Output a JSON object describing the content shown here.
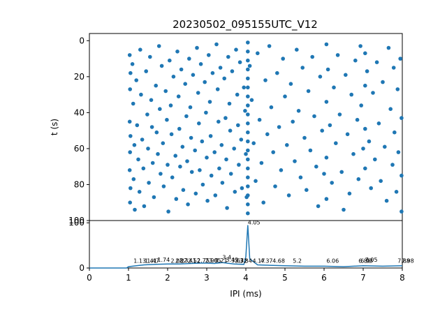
{
  "chart_data": [
    {
      "type": "scatter",
      "title": "20230502_095155UTC_V12",
      "xlabel": "",
      "ylabel": "t (s)",
      "xlim": [
        0,
        8
      ],
      "ylim": [
        100,
        -4
      ],
      "y_inverted": true,
      "yticks": [
        0,
        20,
        40,
        60,
        80,
        100
      ],
      "xticks": [
        0,
        1,
        2,
        3,
        4,
        5,
        6,
        7,
        8
      ],
      "color": "#1f77b4",
      "points": [
        [
          1.03,
          8
        ],
        [
          1.05,
          18
        ],
        [
          1.04,
          27
        ],
        [
          1.03,
          45
        ],
        [
          1.05,
          53
        ],
        [
          1.04,
          62
        ],
        [
          1.03,
          72
        ],
        [
          1.05,
          82
        ],
        [
          1.04,
          90
        ],
        [
          1.1,
          13
        ],
        [
          1.12,
          35
        ],
        [
          1.15,
          58
        ],
        [
          1.13,
          77
        ],
        [
          1.16,
          94
        ],
        [
          1.2,
          22
        ],
        [
          1.22,
          47
        ],
        [
          1.25,
          66
        ],
        [
          1.28,
          84
        ],
        [
          1.3,
          5
        ],
        [
          1.32,
          30
        ],
        [
          1.35,
          55
        ],
        [
          1.38,
          71
        ],
        [
          1.4,
          92
        ],
        [
          1.45,
          17
        ],
        [
          1.48,
          41
        ],
        [
          1.5,
          60
        ],
        [
          1.52,
          79
        ],
        [
          1.55,
          9
        ],
        [
          1.58,
          33
        ],
        [
          1.6,
          48
        ],
        [
          1.62,
          68
        ],
        [
          1.65,
          87
        ],
        [
          1.7,
          25
        ],
        [
          1.72,
          51
        ],
        [
          1.75,
          63
        ],
        [
          1.78,
          3
        ],
        [
          1.8,
          38
        ],
        [
          1.82,
          74
        ],
        [
          1.85,
          14
        ],
        [
          1.88,
          57
        ],
        [
          1.9,
          81
        ],
        [
          1.95,
          28
        ],
        [
          1.98,
          44
        ],
        [
          2.0,
          69
        ],
        [
          2.02,
          95
        ],
        [
          2.05,
          11
        ],
        [
          2.08,
          36
        ],
        [
          2.1,
          52
        ],
        [
          2.12,
          76
        ],
        [
          2.15,
          20
        ],
        [
          2.2,
          64
        ],
        [
          2.22,
          88
        ],
        [
          2.25,
          6
        ],
        [
          2.28,
          31
        ],
        [
          2.3,
          49
        ],
        [
          2.32,
          70
        ],
        [
          2.35,
          16
        ],
        [
          2.38,
          59
        ],
        [
          2.4,
          83
        ],
        [
          2.45,
          24
        ],
        [
          2.48,
          42
        ],
        [
          2.5,
          67
        ],
        [
          2.52,
          91
        ],
        [
          2.55,
          10
        ],
        [
          2.58,
          37
        ],
        [
          2.6,
          54
        ],
        [
          2.62,
          73
        ],
        [
          2.65,
          19
        ],
        [
          2.7,
          61
        ],
        [
          2.72,
          85
        ],
        [
          2.75,
          4
        ],
        [
          2.78,
          29
        ],
        [
          2.8,
          46
        ],
        [
          2.82,
          72
        ],
        [
          2.85,
          13
        ],
        [
          2.88,
          56
        ],
        [
          2.9,
          80
        ],
        [
          2.95,
          23
        ],
        [
          2.98,
          40
        ],
        [
          3.0,
          65
        ],
        [
          3.02,
          89
        ],
        [
          3.05,
          8
        ],
        [
          3.08,
          34
        ],
        [
          3.1,
          53
        ],
        [
          3.12,
          75
        ],
        [
          3.15,
          18
        ],
        [
          3.2,
          62
        ],
        [
          3.22,
          86
        ],
        [
          3.25,
          2
        ],
        [
          3.28,
          27
        ],
        [
          3.3,
          45
        ],
        [
          3.32,
          71
        ],
        [
          3.35,
          15
        ],
        [
          3.38,
          58
        ],
        [
          3.4,
          79
        ],
        [
          3.45,
          21
        ],
        [
          3.48,
          43
        ],
        [
          3.5,
          66
        ],
        [
          3.52,
          93
        ],
        [
          3.55,
          9
        ],
        [
          3.58,
          35
        ],
        [
          3.6,
          50
        ],
        [
          3.62,
          74
        ],
        [
          3.65,
          17
        ],
        [
          3.7,
          60
        ],
        [
          3.72,
          84
        ],
        [
          3.75,
          5
        ],
        [
          3.78,
          30
        ],
        [
          3.8,
          47
        ],
        [
          3.82,
          69
        ],
        [
          3.85,
          12
        ],
        [
          3.88,
          55
        ],
        [
          3.9,
          82
        ],
        [
          3.95,
          26
        ],
        [
          3.98,
          39
        ],
        [
          4.0,
          63
        ],
        [
          4.02,
          87
        ],
        [
          4.05,
          1
        ],
        [
          4.05,
          6
        ],
        [
          4.05,
          11
        ],
        [
          4.05,
          16
        ],
        [
          4.05,
          21
        ],
        [
          4.05,
          26
        ],
        [
          4.05,
          31
        ],
        [
          4.05,
          36
        ],
        [
          4.05,
          41
        ],
        [
          4.05,
          46
        ],
        [
          4.05,
          51
        ],
        [
          4.05,
          56
        ],
        [
          4.05,
          61
        ],
        [
          4.05,
          66
        ],
        [
          4.05,
          71
        ],
        [
          4.05,
          76
        ],
        [
          4.05,
          81
        ],
        [
          4.05,
          86
        ],
        [
          4.05,
          91
        ],
        [
          4.05,
          96
        ],
        [
          4.1,
          14
        ],
        [
          4.15,
          33
        ],
        [
          4.2,
          57
        ],
        [
          4.25,
          78
        ],
        [
          4.3,
          7
        ],
        [
          4.35,
          44
        ],
        [
          4.4,
          68
        ],
        [
          4.45,
          90
        ],
        [
          4.5,
          22
        ],
        [
          4.55,
          52
        ],
        [
          4.6,
          3
        ],
        [
          4.65,
          37
        ],
        [
          4.7,
          62
        ],
        [
          4.75,
          81
        ],
        [
          4.8,
          18
        ],
        [
          4.85,
          48
        ],
        [
          4.9,
          72
        ],
        [
          4.95,
          10
        ],
        [
          5.0,
          31
        ],
        [
          5.05,
          58
        ],
        [
          5.1,
          86
        ],
        [
          5.15,
          24
        ],
        [
          5.2,
          45
        ],
        [
          5.25,
          67
        ],
        [
          5.3,
          5
        ],
        [
          5.35,
          39
        ],
        [
          5.4,
          76
        ],
        [
          5.45,
          15
        ],
        [
          5.5,
          54
        ],
        [
          5.55,
          83
        ],
        [
          5.6,
          28
        ],
        [
          5.65,
          61
        ],
        [
          5.7,
          9
        ],
        [
          5.75,
          42
        ],
        [
          5.8,
          70
        ],
        [
          5.85,
          92
        ],
        [
          5.9,
          20
        ],
        [
          5.95,
          50
        ],
        [
          6.0,
          74
        ],
        [
          6.06,
          2
        ],
        [
          6.06,
          34
        ],
        [
          6.06,
          65
        ],
        [
          6.06,
          88
        ],
        [
          6.1,
          16
        ],
        [
          6.15,
          47
        ],
        [
          6.2,
          79
        ],
        [
          6.25,
          26
        ],
        [
          6.3,
          57
        ],
        [
          6.35,
          8
        ],
        [
          6.4,
          41
        ],
        [
          6.45,
          73
        ],
        [
          6.5,
          94
        ],
        [
          6.55,
          19
        ],
        [
          6.6,
          52
        ],
        [
          6.65,
          85
        ],
        [
          6.7,
          30
        ],
        [
          6.75,
          63
        ],
        [
          6.8,
          11
        ],
        [
          6.85,
          44
        ],
        [
          6.88,
          77
        ],
        [
          6.93,
          3
        ],
        [
          6.95,
          36
        ],
        [
          7.0,
          60
        ],
        [
          7.05,
          7
        ],
        [
          7.05,
          25
        ],
        [
          7.05,
          49
        ],
        [
          7.05,
          71
        ],
        [
          7.1,
          17
        ],
        [
          7.15,
          56
        ],
        [
          7.2,
          82
        ],
        [
          7.25,
          29
        ],
        [
          7.3,
          66
        ],
        [
          7.35,
          12
        ],
        [
          7.4,
          46
        ],
        [
          7.45,
          78
        ],
        [
          7.5,
          23
        ],
        [
          7.55,
          59
        ],
        [
          7.6,
          89
        ],
        [
          7.65,
          4
        ],
        [
          7.7,
          38
        ],
        [
          7.75,
          69
        ],
        [
          7.78,
          15
        ],
        [
          7.8,
          51
        ],
        [
          7.85,
          84
        ],
        [
          7.88,
          27
        ],
        [
          7.9,
          62
        ],
        [
          7.95,
          10
        ],
        [
          7.98,
          43
        ],
        [
          7.98,
          75
        ],
        [
          7.98,
          95
        ]
      ]
    },
    {
      "type": "line",
      "xlabel": "IPI (ms)",
      "ylabel": "",
      "xlim": [
        0,
        8
      ],
      "ylim": [
        0,
        105
      ],
      "yticks": [
        0,
        100
      ],
      "xticks": [
        0,
        1,
        2,
        3,
        4,
        5,
        6,
        7,
        8
      ],
      "xtick_labels": [
        "0",
        "1",
        "2",
        "3",
        "4",
        "5",
        "6",
        "7",
        "8"
      ],
      "color": "#1f77b4",
      "x": [
        0,
        0.95,
        1.0,
        1.2,
        1.4,
        1.7,
        2.0,
        2.3,
        2.6,
        2.9,
        3.2,
        3.4,
        3.7,
        3.95,
        4.0,
        4.05,
        4.1,
        4.3,
        4.6,
        5.0,
        5.5,
        6.0,
        6.5,
        7.0,
        7.5,
        8.0
      ],
      "y": [
        0,
        0,
        3,
        5,
        7,
        8,
        9,
        9,
        10,
        11,
        10,
        12,
        9,
        8,
        25,
        95,
        20,
        7,
        6,
        5,
        4,
        4,
        3,
        5,
        4,
        5
      ],
      "peak_labels": [
        {
          "x": 1.13,
          "y": 10,
          "text": "1.13"
        },
        {
          "x": 1.41,
          "y": 10,
          "text": "1.41"
        },
        {
          "x": 1.47,
          "y": 10,
          "text": "1.47"
        },
        {
          "x": 1.74,
          "y": 12,
          "text": "1.74"
        },
        {
          "x": 2.08,
          "y": 10,
          "text": "2.08"
        },
        {
          "x": 2.2,
          "y": 10,
          "text": "2.2"
        },
        {
          "x": 2.3,
          "y": 11,
          "text": "2.3"
        },
        {
          "x": 2.41,
          "y": 11,
          "text": "2.41"
        },
        {
          "x": 2.52,
          "y": 10,
          "text": "2.52"
        },
        {
          "x": 2.75,
          "y": 11,
          "text": "2.75"
        },
        {
          "x": 2.96,
          "y": 11,
          "text": "2.96"
        },
        {
          "x": 3.05,
          "y": 11,
          "text": "3.05"
        },
        {
          "x": 3.21,
          "y": 11,
          "text": "3.21"
        },
        {
          "x": 3.4,
          "y": 18,
          "text": "3.4"
        },
        {
          "x": 3.49,
          "y": 12,
          "text": "3.49"
        },
        {
          "x": 3.63,
          "y": 11,
          "text": "3.63"
        },
        {
          "x": 3.72,
          "y": 10,
          "text": "3.72"
        },
        {
          "x": 3.84,
          "y": 10,
          "text": "3.84"
        },
        {
          "x": 4.05,
          "y": 95,
          "text": "4.05"
        },
        {
          "x": 4.17,
          "y": 10,
          "text": "4.17"
        },
        {
          "x": 4.37,
          "y": 10,
          "text": "4.37"
        },
        {
          "x": 4.68,
          "y": 10,
          "text": "4.68"
        },
        {
          "x": 5.2,
          "y": 10,
          "text": "5.2"
        },
        {
          "x": 6.06,
          "y": 10,
          "text": "6.06"
        },
        {
          "x": 6.88,
          "y": 10,
          "text": "6.88"
        },
        {
          "x": 6.93,
          "y": 10,
          "text": "6.93"
        },
        {
          "x": 7.05,
          "y": 12,
          "text": "7.05"
        },
        {
          "x": 7.88,
          "y": 10,
          "text": "7.88"
        },
        {
          "x": 7.98,
          "y": 10,
          "text": "7.98"
        }
      ]
    }
  ]
}
